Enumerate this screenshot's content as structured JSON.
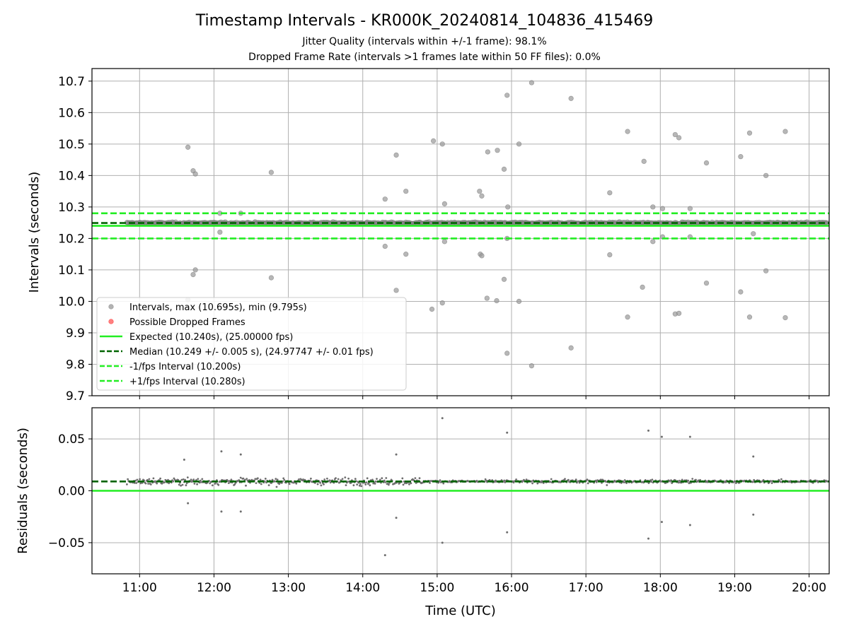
{
  "title": "Timestamp Intervals - KR000K_20240814_104836_415469",
  "subtitle_1": "Jitter Quality (intervals within +/-1 frame): 98.1%",
  "subtitle_2": "Dropped Frame Rate (intervals >1 frames late within 50 FF files): 0.0%",
  "chart_data": [
    {
      "type": "scatter",
      "name": "intervals",
      "xlabel": "",
      "ylabel": "Intervals (seconds)",
      "x_unit": "hours UTC",
      "xlim": [
        10.36,
        20.27
      ],
      "ylim": [
        9.7,
        10.74
      ],
      "yticks": [
        "9.7",
        "9.8",
        "9.9",
        "10.0",
        "10.1",
        "10.2",
        "10.3",
        "10.4",
        "10.5",
        "10.6",
        "10.7"
      ],
      "grid": true,
      "legend_position": "lower-left",
      "reference_lines": [
        {
          "label": "Expected (10.240s), (25.00000 fps)",
          "value": 10.24,
          "style": "solid",
          "color": "#22ee22"
        },
        {
          "label": "Median (10.249 +/- 0.005 s), (24.97747 +/- 0.01 fps)",
          "value": 10.249,
          "style": "dashed",
          "color": "#006400"
        },
        {
          "label": "-1/fps Interval (10.200s)",
          "value": 10.2,
          "style": "dashed",
          "color": "#22ee22"
        },
        {
          "label": "+1/fps Interval (10.280s)",
          "value": 10.28,
          "style": "dashed",
          "color": "#22ee22"
        }
      ],
      "series": [
        {
          "label": "Intervals, max (10.695s), min (9.795s)",
          "color": "#999999",
          "points": [
            [
              11.65,
              10.49
            ],
            [
              11.72,
              10.415
            ],
            [
              11.75,
              10.405
            ],
            [
              12.77,
              10.41
            ],
            [
              14.45,
              10.465
            ],
            [
              14.3,
              10.325
            ],
            [
              14.58,
              10.35
            ],
            [
              14.95,
              10.51
            ],
            [
              15.07,
              10.5
            ],
            [
              15.1,
              10.31
            ],
            [
              15.57,
              10.35
            ],
            [
              15.6,
              10.335
            ],
            [
              15.68,
              10.475
            ],
            [
              15.81,
              10.48
            ],
            [
              15.9,
              10.42
            ],
            [
              15.94,
              10.655
            ],
            [
              15.95,
              10.3
            ],
            [
              16.1,
              10.5
            ],
            [
              16.27,
              10.695
            ],
            [
              16.8,
              10.645
            ],
            [
              17.32,
              10.345
            ],
            [
              17.56,
              10.54
            ],
            [
              17.78,
              10.445
            ],
            [
              17.9,
              10.3
            ],
            [
              18.03,
              10.295
            ],
            [
              18.2,
              10.53
            ],
            [
              18.25,
              10.52
            ],
            [
              18.4,
              10.295
            ],
            [
              18.62,
              10.44
            ],
            [
              19.08,
              10.46
            ],
            [
              19.2,
              10.535
            ],
            [
              19.42,
              10.4
            ],
            [
              19.68,
              10.54
            ],
            [
              12.08,
              10.28
            ],
            [
              12.36,
              10.28
            ],
            [
              14.3,
              10.175
            ],
            [
              14.58,
              10.15
            ],
            [
              15.58,
              10.15
            ],
            [
              15.6,
              10.145
            ],
            [
              15.1,
              10.19
            ],
            [
              15.94,
              10.2
            ],
            [
              17.32,
              10.148
            ],
            [
              17.9,
              10.19
            ],
            [
              18.03,
              10.205
            ],
            [
              18.4,
              10.205
            ],
            [
              19.25,
              10.215
            ],
            [
              12.08,
              10.22
            ],
            [
              11.72,
              10.085
            ],
            [
              11.75,
              10.1
            ],
            [
              12.77,
              10.075
            ],
            [
              14.45,
              10.035
            ],
            [
              14.93,
              9.975
            ],
            [
              15.07,
              9.995
            ],
            [
              15.67,
              10.01
            ],
            [
              15.8,
              10.002
            ],
            [
              15.9,
              10.07
            ],
            [
              16.1,
              10.0
            ],
            [
              17.76,
              10.045
            ],
            [
              18.2,
              9.96
            ],
            [
              18.25,
              9.962
            ],
            [
              18.62,
              10.058
            ],
            [
              19.08,
              10.03
            ],
            [
              19.42,
              10.097
            ],
            [
              11.65,
              10.005
            ],
            [
              15.94,
              9.835
            ],
            [
              16.27,
              9.795
            ],
            [
              16.8,
              9.852
            ],
            [
              17.56,
              9.95
            ],
            [
              19.2,
              9.95
            ],
            [
              19.68,
              9.948
            ]
          ]
        },
        {
          "label": "Possible Dropped Frames",
          "color": "#ff5555",
          "points": []
        }
      ]
    },
    {
      "type": "scatter",
      "name": "residuals",
      "xlabel": "Time (UTC)",
      "ylabel": "Residuals (seconds)",
      "x_unit": "hours UTC",
      "xlim": [
        10.36,
        20.27
      ],
      "ylim": [
        -0.08,
        0.08
      ],
      "yticks": [
        "−0.05",
        "0.00",
        "0.05"
      ],
      "xticks": [
        "11:00",
        "12:00",
        "13:00",
        "14:00",
        "15:00",
        "16:00",
        "17:00",
        "18:00",
        "19:00",
        "20:00"
      ],
      "grid": true,
      "reference_lines": [
        {
          "value": 0.0,
          "style": "solid",
          "color": "#22ee22"
        },
        {
          "value": 0.009,
          "style": "dashed",
          "color": "#006400"
        }
      ],
      "outliers": [
        [
          15.07,
          0.07
        ],
        [
          15.94,
          0.056
        ],
        [
          17.84,
          0.058
        ],
        [
          18.02,
          0.052
        ],
        [
          18.4,
          0.052
        ],
        [
          12.1,
          0.038
        ],
        [
          12.36,
          0.035
        ],
        [
          14.45,
          0.035
        ],
        [
          19.25,
          0.033
        ],
        [
          11.6,
          0.03
        ],
        [
          15.94,
          -0.04
        ],
        [
          15.07,
          -0.05
        ],
        [
          14.3,
          -0.062
        ],
        [
          17.84,
          -0.046
        ],
        [
          18.4,
          -0.033
        ],
        [
          19.25,
          -0.023
        ],
        [
          18.02,
          -0.03
        ],
        [
          14.45,
          -0.026
        ],
        [
          12.1,
          -0.02
        ],
        [
          12.36,
          -0.02
        ],
        [
          11.65,
          -0.012
        ]
      ]
    }
  ]
}
